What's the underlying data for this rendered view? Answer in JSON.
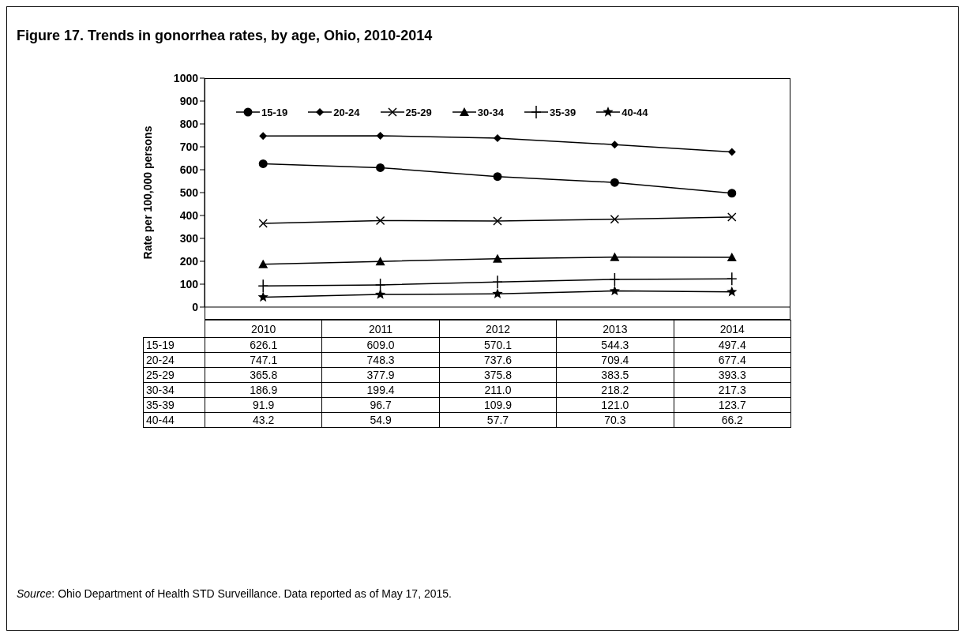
{
  "chart_data": {
    "type": "line",
    "title": "Figure 17.  Trends in gonorrhea rates, by age, Ohio, 2010-2014",
    "ylabel": "Rate per 100,000 persons",
    "categories": [
      "2010",
      "2011",
      "2012",
      "2013",
      "2014"
    ],
    "series": [
      {
        "name": "15-19",
        "color": "#000000",
        "marker": "circle",
        "values": [
          626.1,
          609.0,
          570.1,
          544.3,
          497.4
        ],
        "value_labels": [
          "626.1",
          "609.0",
          "570.1",
          "544.3",
          "497.4"
        ]
      },
      {
        "name": "20-24",
        "color": "#000000",
        "marker": "diamond",
        "values": [
          747.1,
          748.3,
          737.6,
          709.4,
          677.4
        ],
        "value_labels": [
          "747.1",
          "748.3",
          "737.6",
          "709.4",
          "677.4"
        ]
      },
      {
        "name": "25-29",
        "color": "#000000",
        "marker": "cross",
        "values": [
          365.8,
          377.9,
          375.8,
          383.5,
          393.3
        ],
        "value_labels": [
          "365.8",
          "377.9",
          "375.8",
          "383.5",
          "393.3"
        ]
      },
      {
        "name": "30-34",
        "color": "#000000",
        "marker": "triangle",
        "values": [
          186.9,
          199.4,
          211.0,
          218.2,
          217.3
        ],
        "value_labels": [
          "186.9",
          "199.4",
          "211.0",
          "218.2",
          "217.3"
        ]
      },
      {
        "name": "35-39",
        "color": "#000000",
        "marker": "plus",
        "values": [
          91.9,
          96.7,
          109.9,
          121.0,
          123.7
        ],
        "value_labels": [
          "91.9",
          "96.7",
          "109.9",
          "121.0",
          "123.7"
        ]
      },
      {
        "name": "40-44",
        "color": "#000000",
        "marker": "star",
        "values": [
          43.2,
          54.9,
          57.7,
          70.3,
          66.2
        ],
        "value_labels": [
          "43.2",
          "54.9",
          "57.7",
          "70.3",
          "66.2"
        ]
      }
    ],
    "ylim": [
      0,
      1000
    ],
    "yticks": [
      0,
      100,
      200,
      300,
      400,
      500,
      600,
      700,
      800,
      900,
      1000
    ],
    "legend": "top",
    "line_style": "solid",
    "annotations": [
      "Source:  Ohio Department of Health STD Surveillance. Data reported as of May 17, 2015."
    ]
  }
}
